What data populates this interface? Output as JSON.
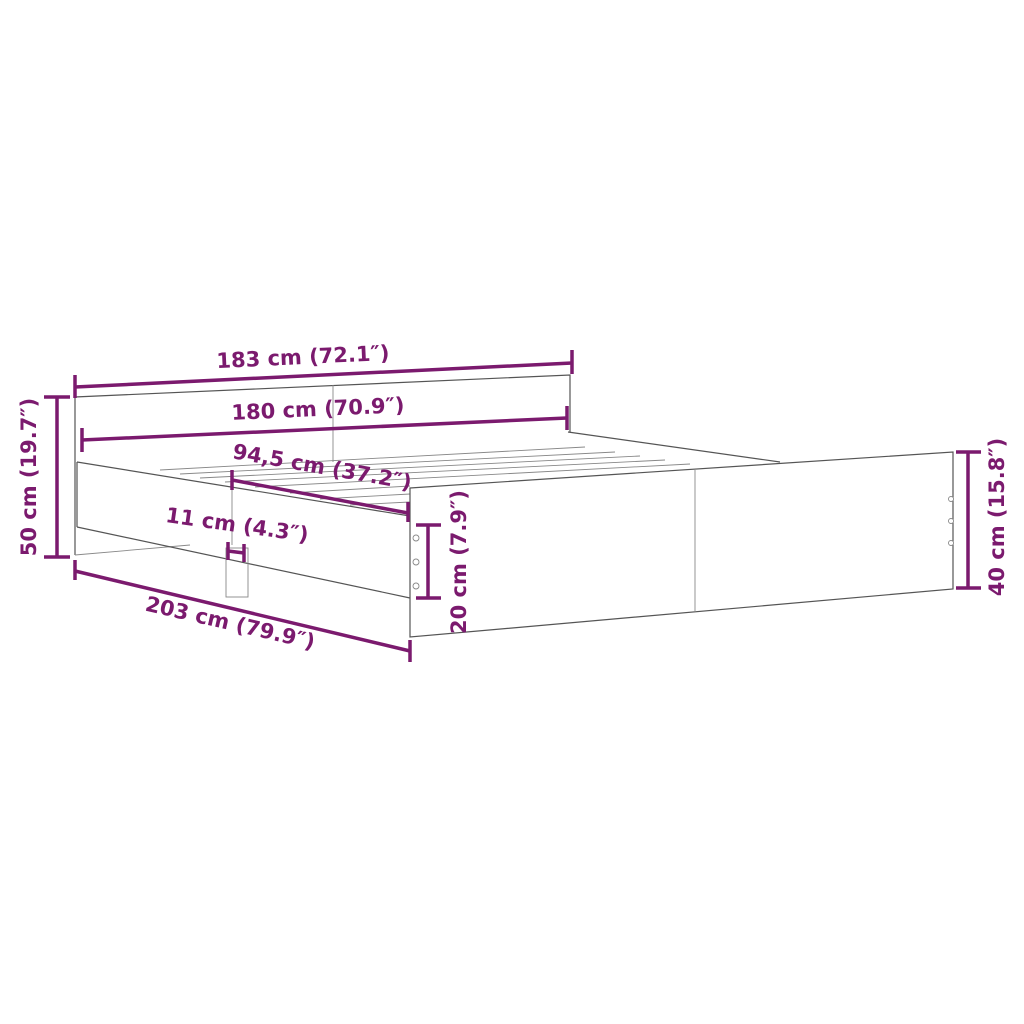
{
  "dimension_color": "#7b1a6e",
  "dimensions": {
    "headboard_width": "183 cm (72.1″)",
    "inner_width": "180 cm (70.9″)",
    "half_slat_length": "94,5 cm (37.2″)",
    "leg_width": "11 cm (4.3″)",
    "footboard_clearance": "20 cm (7.9″)",
    "headboard_height": "50 cm (19.7″)",
    "footboard_height": "40 cm (15.8″)",
    "total_length": "203 cm (79.9″)"
  }
}
